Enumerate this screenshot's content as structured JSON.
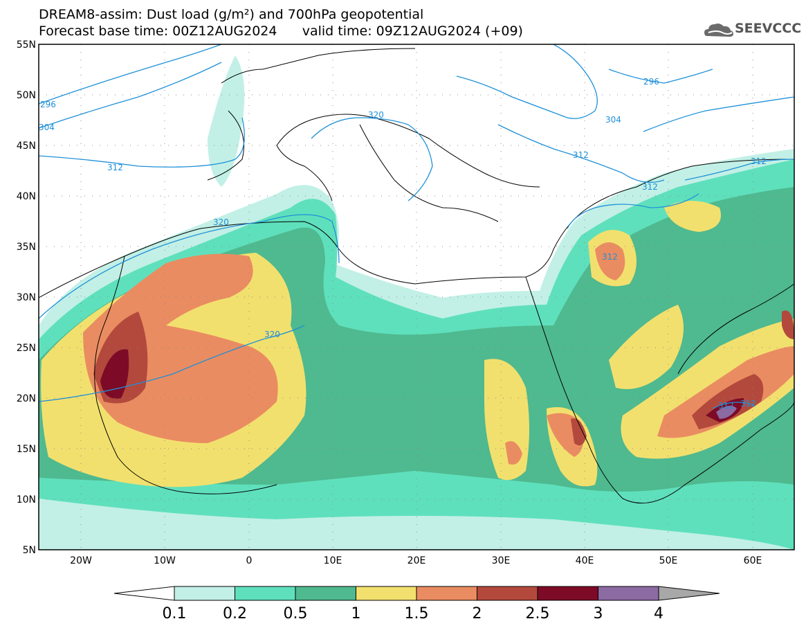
{
  "title_line1": "DREAM8-assim: Dust load (g/m²) and 700hPa geopotential",
  "title_line2": "Forecast base time: 00Z12AUG2024      valid time: 09Z12AUG2024 (+09)",
  "logo": {
    "text": "SEEVCCC",
    "icon": "cloud-logo-icon"
  },
  "map": {
    "lon_range": [
      -25,
      65
    ],
    "lat_range": [
      5,
      55
    ],
    "lat_ticks": [
      "55N",
      "50N",
      "45N",
      "40N",
      "35N",
      "30N",
      "25N",
      "20N",
      "15N",
      "10N",
      "5N"
    ],
    "lon_ticks": [
      "20W",
      "10W",
      "0",
      "10E",
      "20E",
      "30E",
      "40E",
      "50E",
      "60E"
    ],
    "contour_labels": [
      "296",
      "304",
      "312",
      "320",
      "320",
      "320",
      "296",
      "304",
      "312",
      "312",
      "312",
      "312",
      "312",
      "312"
    ]
  },
  "colorbar": {
    "labels": [
      "0.1",
      "0.2",
      "0.5",
      "1",
      "1.5",
      "2",
      "2.5",
      "3",
      "4"
    ],
    "colors": [
      "#c2f0e6",
      "#5fe0bc",
      "#4fb98f",
      "#f2e06e",
      "#ea8c61",
      "#b3493c",
      "#7d0a26",
      "#8c6aa2",
      "#a8a8a8"
    ]
  }
}
